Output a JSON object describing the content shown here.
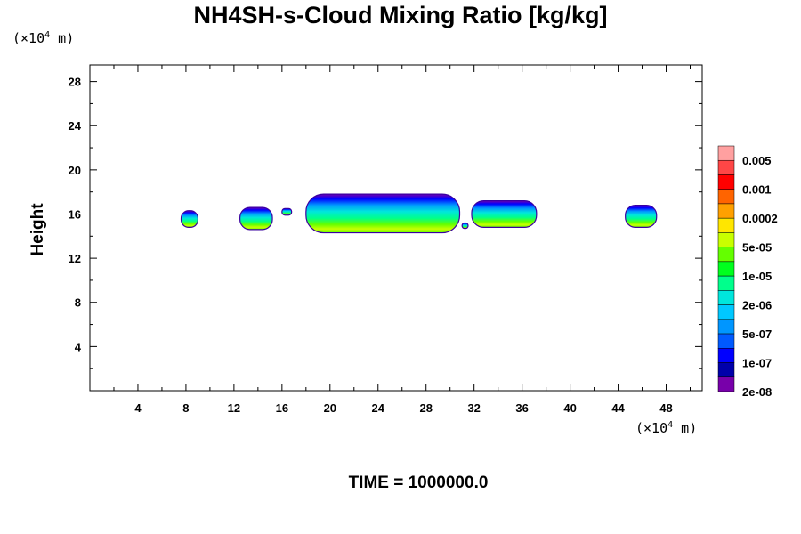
{
  "chart_data": {
    "type": "heatmap",
    "title": "NH4SH-s-Cloud Mixing Ratio [kg/kg]",
    "ylabel": "Height",
    "xlabel": "",
    "x_unit": {
      "base": "(×10",
      "exp": "4",
      "tail": " m)"
    },
    "y_unit": {
      "base": "(×10",
      "exp": "4",
      "tail": " m)"
    },
    "xlim": [
      0,
      51
    ],
    "ylim": [
      0,
      29.5
    ],
    "x_ticks": [
      4,
      8,
      12,
      16,
      20,
      24,
      28,
      32,
      36,
      40,
      44,
      48
    ],
    "y_ticks": [
      4,
      8,
      12,
      16,
      20,
      24,
      28
    ],
    "colorbar": {
      "labels": [
        "0.005",
        "0.001",
        "0.0002",
        "5e-05",
        "1e-05",
        "2e-06",
        "5e-07",
        "1e-07",
        "2e-08"
      ],
      "colors": [
        "#ffa0a0",
        "#ff4646",
        "#ff0000",
        "#ff6400",
        "#ffa000",
        "#ffe600",
        "#c8ff00",
        "#64ff00",
        "#00ff1e",
        "#00ff8c",
        "#00e6dc",
        "#00c8ff",
        "#0096ff",
        "#005aff",
        "#0000ff",
        "#0000aa",
        "#7800aa"
      ]
    },
    "cloud_regions": [
      {
        "x": [
          7.6,
          9.0
        ],
        "y": [
          14.8,
          16.3
        ]
      },
      {
        "x": [
          12.5,
          15.2
        ],
        "y": [
          14.6,
          16.6
        ]
      },
      {
        "x": [
          16.0,
          16.8
        ],
        "y": [
          15.9,
          16.5
        ]
      },
      {
        "x": [
          18.0,
          30.8
        ],
        "y": [
          14.3,
          17.8
        ]
      },
      {
        "x": [
          31.0,
          31.5
        ],
        "y": [
          14.7,
          15.2
        ]
      },
      {
        "x": [
          31.8,
          37.2
        ],
        "y": [
          14.8,
          17.2
        ]
      },
      {
        "x": [
          44.6,
          47.2
        ],
        "y": [
          14.8,
          16.8
        ]
      }
    ],
    "time_label": "TIME = 1000000.0"
  }
}
